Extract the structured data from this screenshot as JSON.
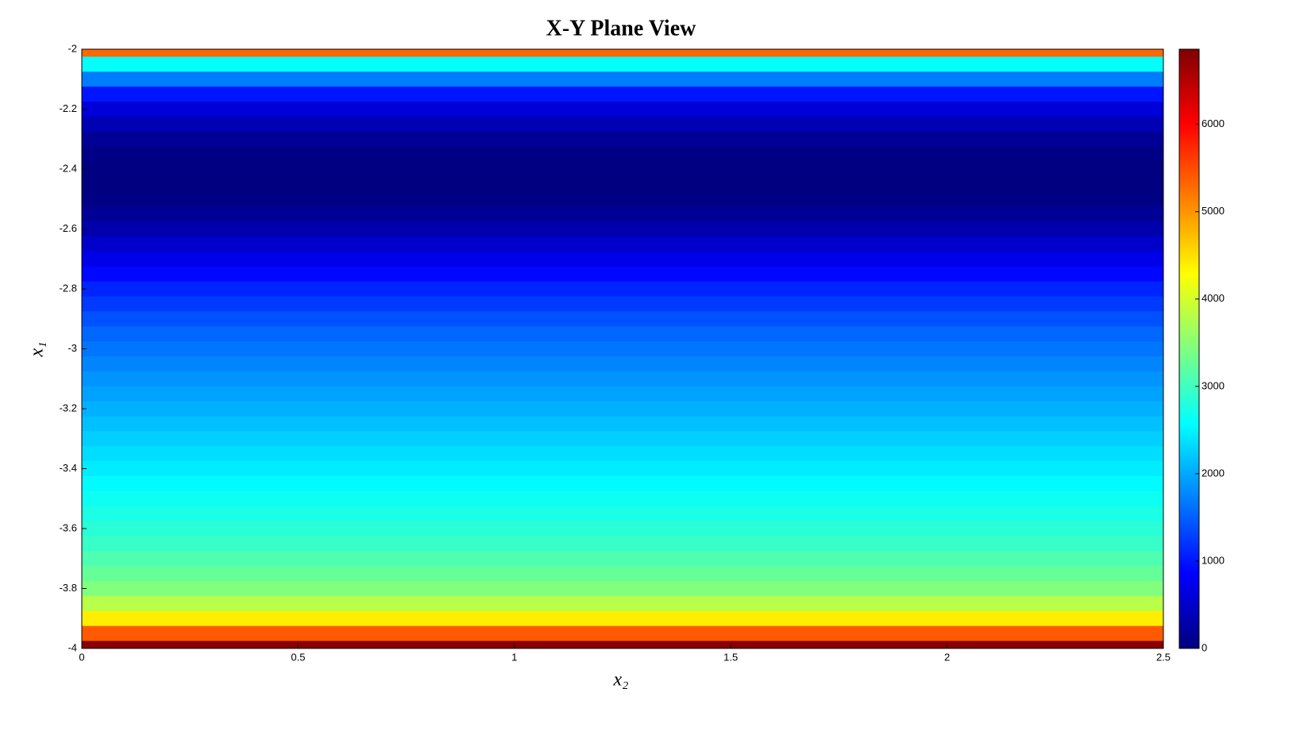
{
  "chart_data": {
    "type": "heatmap",
    "title": "X-Y Plane View",
    "xlabel": "x₂",
    "ylabel": "x₁",
    "colormap": "jet",
    "xlim": [
      0,
      2.5
    ],
    "xticks": [
      0,
      0.5,
      1,
      1.5,
      2,
      2.5
    ],
    "ylim": [
      -4,
      -2
    ],
    "yticks": [
      -4,
      -3.8,
      -3.6,
      -3.4,
      -3.2,
      -3,
      -2.8,
      -2.6,
      -2.4,
      -2.2,
      -2
    ],
    "clim": [
      0,
      6860
    ],
    "cticks": [
      0,
      1000,
      2000,
      3000,
      4000,
      5000,
      6000
    ],
    "y": [
      -2,
      -2.05,
      -2.1,
      -2.15,
      -2.2,
      -2.25,
      -2.3,
      -2.35,
      -2.4,
      -2.45,
      -2.5,
      -2.55,
      -2.6,
      -2.65,
      -2.7,
      -2.75,
      -2.8,
      -2.85,
      -2.9,
      -2.95,
      -3,
      -3.05,
      -3.1,
      -3.15,
      -3.2,
      -3.25,
      -3.3,
      -3.35,
      -3.4,
      -3.45,
      -3.5,
      -3.55,
      -3.6,
      -3.65,
      -3.7,
      -3.75,
      -3.8,
      -3.85,
      -3.9,
      -3.95,
      -4
    ],
    "values": [
      5300,
      2600,
      1700,
      1000,
      600,
      350,
      150,
      50,
      0,
      0,
      30,
      150,
      300,
      500,
      700,
      900,
      1100,
      1250,
      1400,
      1550,
      1650,
      1750,
      1850,
      1950,
      2050,
      2150,
      2250,
      2350,
      2450,
      2550,
      2650,
      2750,
      2850,
      2950,
      3100,
      3250,
      3450,
      3800,
      4400,
      5400,
      6800
    ]
  }
}
